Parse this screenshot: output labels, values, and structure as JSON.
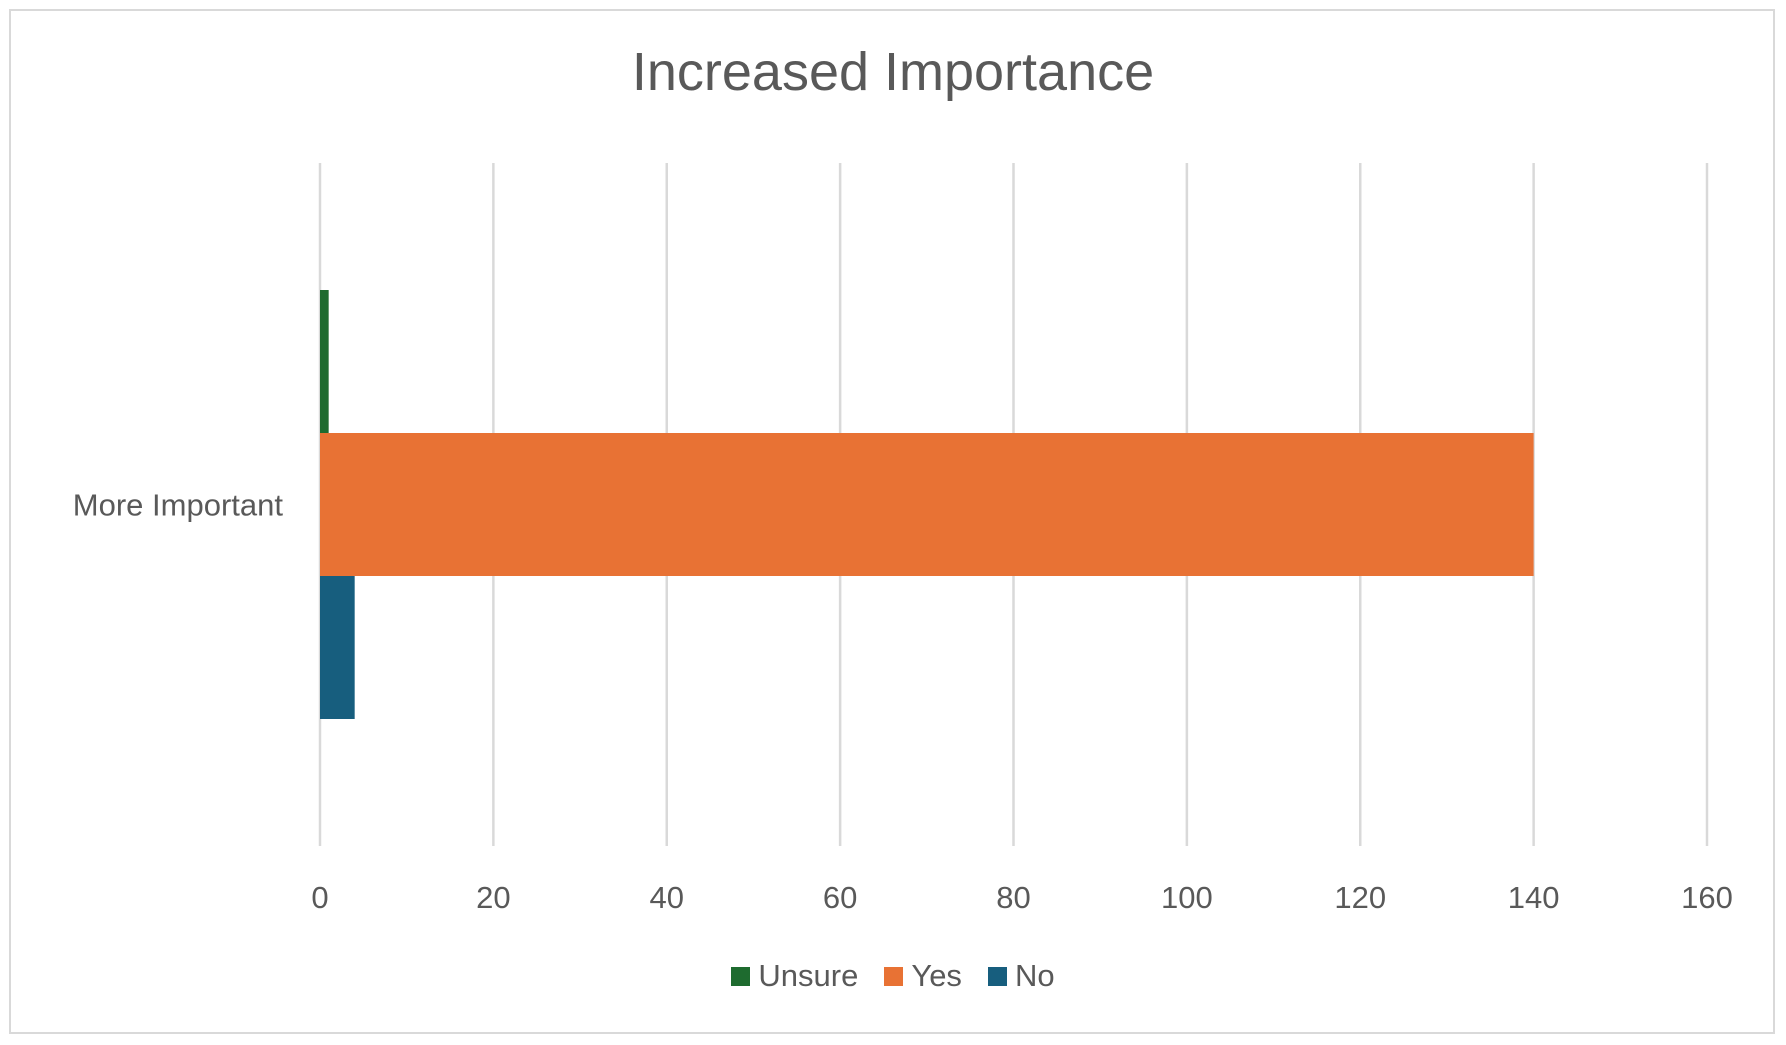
{
  "chart_data": {
    "type": "bar",
    "orientation": "horizontal",
    "title": "Increased Importance",
    "categories": [
      "More Important"
    ],
    "series": [
      {
        "name": "Unsure",
        "values": [
          1
        ],
        "color": "#1e6b2f"
      },
      {
        "name": "Yes",
        "values": [
          140
        ],
        "color": "#e87234"
      },
      {
        "name": "No",
        "values": [
          4
        ],
        "color": "#175e7e"
      }
    ],
    "xlim": [
      0,
      160
    ],
    "x_ticks": [
      0,
      20,
      40,
      60,
      80,
      100,
      120,
      140,
      160
    ],
    "grid": "vertical",
    "legend_position": "bottom"
  }
}
